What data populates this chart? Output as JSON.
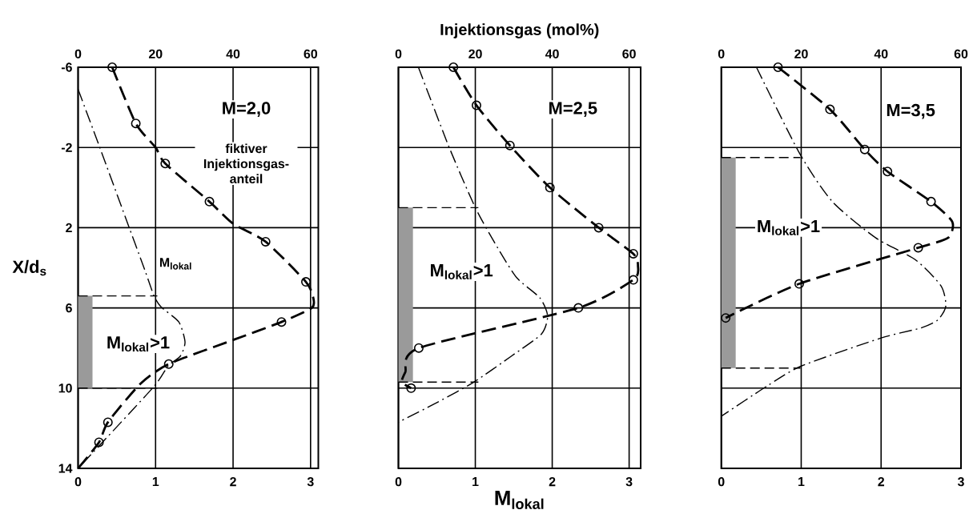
{
  "chart_data": [
    {
      "type": "line",
      "xlim": [
        0,
        3.1
      ],
      "xticks": [
        0,
        1,
        2,
        3
      ],
      "x2lim": [
        0,
        62
      ],
      "x2ticks": [
        0,
        20,
        40,
        60
      ],
      "ylim": [
        14,
        -6
      ],
      "yticks": [
        -6,
        -2,
        2,
        6,
        10,
        14
      ],
      "ylabel": "X/d$_{s}$",
      "grid": true,
      "annotations": [
        "M=2,0"
      ],
      "bands": [
        {
          "axis": "y",
          "from": 5.4,
          "to": 10,
          "label": "M$_{lokal}$>1",
          "color": "#9a9a9a"
        }
      ],
      "ref_lines": [
        {
          "axis": "y",
          "value": 5.4,
          "line_style": "dashed"
        },
        {
          "axis": "y",
          "value": 10,
          "line_style": "dashed"
        }
      ],
      "series": [
        {
          "name": "fiktiver Injektionsgas-anteil",
          "axis": "x2",
          "color": "#000000",
          "line_style": "dashed",
          "marker": "none",
          "x": [
            8.8,
            14.9,
            20,
            22.5,
            33.9,
            40,
            48.4,
            58.8,
            60.7,
            60.3,
            52.5,
            40,
            23.4,
            16,
            7.7,
            5.4,
            0
          ],
          "values": [
            -6,
            -3.2,
            -2,
            -1.2,
            0.7,
            1.8,
            2.7,
            4.7,
            5.5,
            6.0,
            6.7,
            7.6,
            8.8,
            9.8,
            11.7,
            12.7,
            14
          ]
        },
        {
          "type": "scatter",
          "axis": "x2",
          "color": "#000000",
          "marker": "circle",
          "x": [
            8.8,
            14.9,
            22.5,
            33.9,
            48.4,
            58.8,
            52.5,
            23.4,
            7.7,
            5.4
          ],
          "values": [
            -6,
            -3.2,
            -1.2,
            0.7,
            2.7,
            4.7,
            6.7,
            8.8,
            11.7,
            12.7
          ]
        },
        {
          "name": "M$_{lokal}$",
          "color": "#000000",
          "line_style": "dotted",
          "marker": "none",
          "x": [
            0,
            0.28,
            0.66,
            0.86,
            0.98,
            1.07,
            1.3,
            1.38,
            1.32,
            1.16,
            0.96,
            0
          ],
          "values": [
            -4.9,
            -2,
            2,
            4.1,
            5.4,
            5.95,
            6.7,
            7.7,
            8.4,
            8.9,
            10,
            14
          ]
        }
      ]
    },
    {
      "type": "line",
      "xlim": [
        0,
        3.15
      ],
      "xticks": [
        0,
        1,
        2,
        3
      ],
      "x2lim": [
        0,
        63
      ],
      "x2ticks": [
        0,
        20,
        40,
        60
      ],
      "ylim": [
        14,
        -6
      ],
      "yticks": [
        -6,
        -2,
        2,
        6,
        10,
        14
      ],
      "xlabel": "M$_{lokal}$",
      "x2label": "Injektionsgas (mol%)",
      "grid": true,
      "tick_labels": "x",
      "annotations": [
        "M=2,5"
      ],
      "bands": [
        {
          "axis": "y",
          "from": 1.0,
          "to": 9.7,
          "label": "M$_{lokal}$>1",
          "color": "#9a9a9a"
        }
      ],
      "ref_lines": [
        {
          "axis": "y",
          "value": 1.0,
          "line_style": "dashed"
        },
        {
          "axis": "y",
          "value": 9.7,
          "line_style": "dashed"
        }
      ],
      "series": [
        {
          "axis": "x2",
          "color": "#000000",
          "line_style": "dashed",
          "marker": "none",
          "x": [
            14.3,
            20.3,
            29.0,
            39.4,
            52.1,
            61.1,
            62.3,
            61.1,
            46.8,
            5.3,
            1.8,
            0.9,
            3.3
          ],
          "values": [
            -6,
            -4.1,
            -2.1,
            0,
            2,
            3.3,
            3.9,
            4.6,
            6,
            8,
            9.2,
            9.7,
            10
          ]
        },
        {
          "type": "scatter",
          "axis": "x2",
          "color": "#000000",
          "marker": "circle",
          "x": [
            14.3,
            20.3,
            29.0,
            39.4,
            52.1,
            61.1,
            61.1,
            46.8,
            5.3,
            3.3
          ],
          "values": [
            -6,
            -4.1,
            -2.1,
            0,
            2,
            3.3,
            4.6,
            6,
            8,
            10
          ]
        },
        {
          "color": "#000000",
          "line_style": "dotted",
          "marker": "none",
          "x": [
            0.26,
            0.65,
            1.0,
            1.29,
            1.54,
            1.84,
            1.94,
            1.86,
            1.47,
            0.98,
            0.51,
            0
          ],
          "values": [
            -6,
            -2.1,
            1,
            3,
            4.5,
            5.5,
            6.4,
            7.3,
            8.4,
            9.7,
            10.7,
            11.7
          ]
        }
      ]
    },
    {
      "type": "line",
      "xlim": [
        0,
        3
      ],
      "xticks": [
        0,
        1,
        2,
        3
      ],
      "x2lim": [
        0,
        60
      ],
      "x2ticks": [
        0,
        20,
        40,
        60
      ],
      "ylim": [
        14,
        -6
      ],
      "yticks": [
        -6,
        -2,
        2,
        6,
        10,
        14
      ],
      "grid": true,
      "tick_labels": "x",
      "annotations": [
        "M=3,5"
      ],
      "bands": [
        {
          "axis": "y",
          "from": -1.5,
          "to": 9,
          "label": "M$_{lokal}$>1",
          "color": "#9a9a9a"
        }
      ],
      "ref_lines": [
        {
          "axis": "y",
          "value": -1.5,
          "line_style": "dashed"
        },
        {
          "axis": "y",
          "value": 9,
          "line_style": "dashed"
        }
      ],
      "series": [
        {
          "axis": "x2",
          "color": "#000000",
          "line_style": "dashed",
          "marker": "none",
          "x": [
            14.2,
            27.2,
            35.9,
            41.6,
            52.5,
            57.8,
            56.8,
            49.3,
            19.5,
            1.1
          ],
          "values": [
            -6,
            -3.9,
            -1.9,
            -0.8,
            0.7,
            1.7,
            2.5,
            3,
            4.8,
            6.5
          ]
        },
        {
          "type": "scatter",
          "axis": "x2",
          "color": "#000000",
          "marker": "circle",
          "x": [
            14.2,
            27.2,
            35.9,
            41.6,
            52.5,
            49.3,
            19.5,
            1.1
          ],
          "values": [
            -6,
            -3.9,
            -1.9,
            -0.8,
            0.7,
            3,
            4.8,
            6.5
          ]
        },
        {
          "color": "#000000",
          "line_style": "dotted",
          "marker": "none",
          "x": [
            0.44,
            0.98,
            1.39,
            1.93,
            2.43,
            2.75,
            2.81,
            2.71,
            2.5,
            2.0,
            1.0,
            0.57,
            0
          ],
          "values": [
            -6,
            -1.7,
            0.7,
            2.5,
            3.6,
            4.9,
            5.9,
            6.6,
            7,
            7.5,
            8.9,
            9.9,
            11.4
          ]
        }
      ]
    }
  ]
}
